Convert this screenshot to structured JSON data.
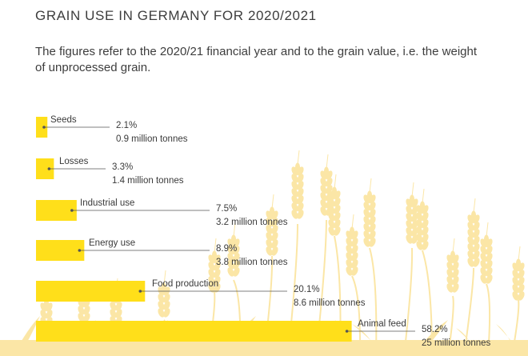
{
  "title": "GRAIN USE IN GERMANY FOR 2020/2021",
  "subtitle": "The figures refer to the 2020/21 financial year and to the grain value, i.e. the weight of unprocessed grain.",
  "colors": {
    "bar": "#ffdf1a",
    "text": "#3a3a3a",
    "leader": "#555555",
    "wheat": "#fbe6a6"
  },
  "chart_data": {
    "type": "bar",
    "orientation": "horizontal",
    "categories": [
      "Seeds",
      "Losses",
      "Industrial use",
      "Energy use",
      "Food production",
      "Animal feed"
    ],
    "values": [
      2.1,
      3.3,
      7.5,
      8.9,
      20.1,
      58.2
    ],
    "value_labels": [
      "2.1%",
      "3.3%",
      "7.5%",
      "8.9%",
      "20.1%",
      "58.2%"
    ],
    "secondary_labels": [
      "0.9 million tonnes",
      "1.4 million tonnes",
      "3.2 million tonnes",
      "3.8 million tonnes",
      "8.6 million tonnes",
      "25 million tonnes"
    ],
    "title": "GRAIN USE IN GERMANY FOR 2020/2021",
    "subtitle": "The figures refer to the 2020/21 financial year and to the grain value, i.e. the weight of unprocessed grain.",
    "xlabel": "",
    "ylabel": "",
    "grid": false,
    "legend": "none"
  }
}
